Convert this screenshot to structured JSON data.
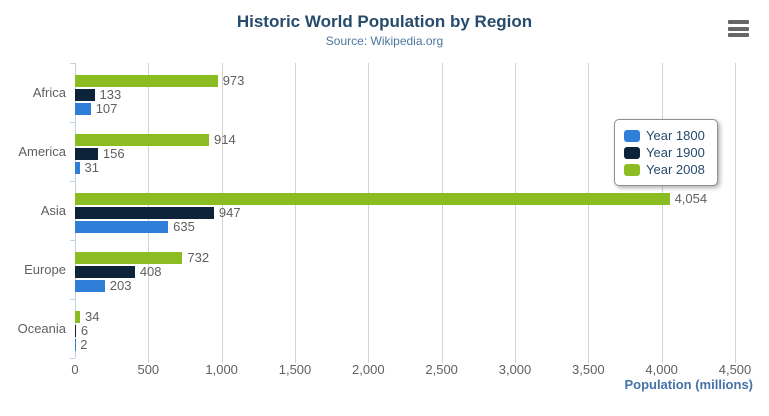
{
  "title": "Historic World Population by Region",
  "subtitle": "Source: Wikipedia.org",
  "menu": {
    "icon": "hamburger-icon"
  },
  "colors": {
    "title": "#274b6d",
    "subtitle": "#4d759e",
    "axis_labels": "#606060",
    "axis_title": "#4572a7",
    "gridline": "#d2d2d2",
    "axis_line": "#c0d0e0",
    "legend_border": "#909090",
    "legend_text": "#274b6d",
    "menu_icon": "#666666"
  },
  "chart_data": {
    "type": "bar",
    "orientation": "horizontal",
    "categories": [
      "Africa",
      "America",
      "Asia",
      "Europe",
      "Oceania"
    ],
    "series": [
      {
        "name": "Year 1800",
        "color": "#2f7ed8",
        "values": [
          107,
          31,
          635,
          203,
          2
        ],
        "value_labels": [
          "107",
          "31",
          "635",
          "203",
          "2"
        ]
      },
      {
        "name": "Year 1900",
        "color": "#0d233a",
        "values": [
          133,
          156,
          947,
          408,
          6
        ],
        "value_labels": [
          "133",
          "156",
          "947",
          "408",
          "6"
        ]
      },
      {
        "name": "Year 2008",
        "color": "#8bbc21",
        "values": [
          973,
          914,
          4054,
          732,
          34
        ],
        "value_labels": [
          "973",
          "914",
          "4,054",
          "732",
          "34"
        ]
      }
    ],
    "bar_order_top_to_bottom": [
      "Year 2008",
      "Year 1900",
      "Year 1800"
    ],
    "title": "Historic World Population by Region",
    "subtitle": "Source: Wikipedia.org",
    "xlabel": "Population (millions)",
    "ylabel": "",
    "xlim": [
      0,
      4500
    ],
    "x_ticks": [
      "0",
      "500",
      "1,000",
      "1,500",
      "2,000",
      "2,500",
      "3,000",
      "3,500",
      "4,000",
      "4,500"
    ],
    "grid": true,
    "data_labels": true,
    "legend_position": "right-floating"
  }
}
